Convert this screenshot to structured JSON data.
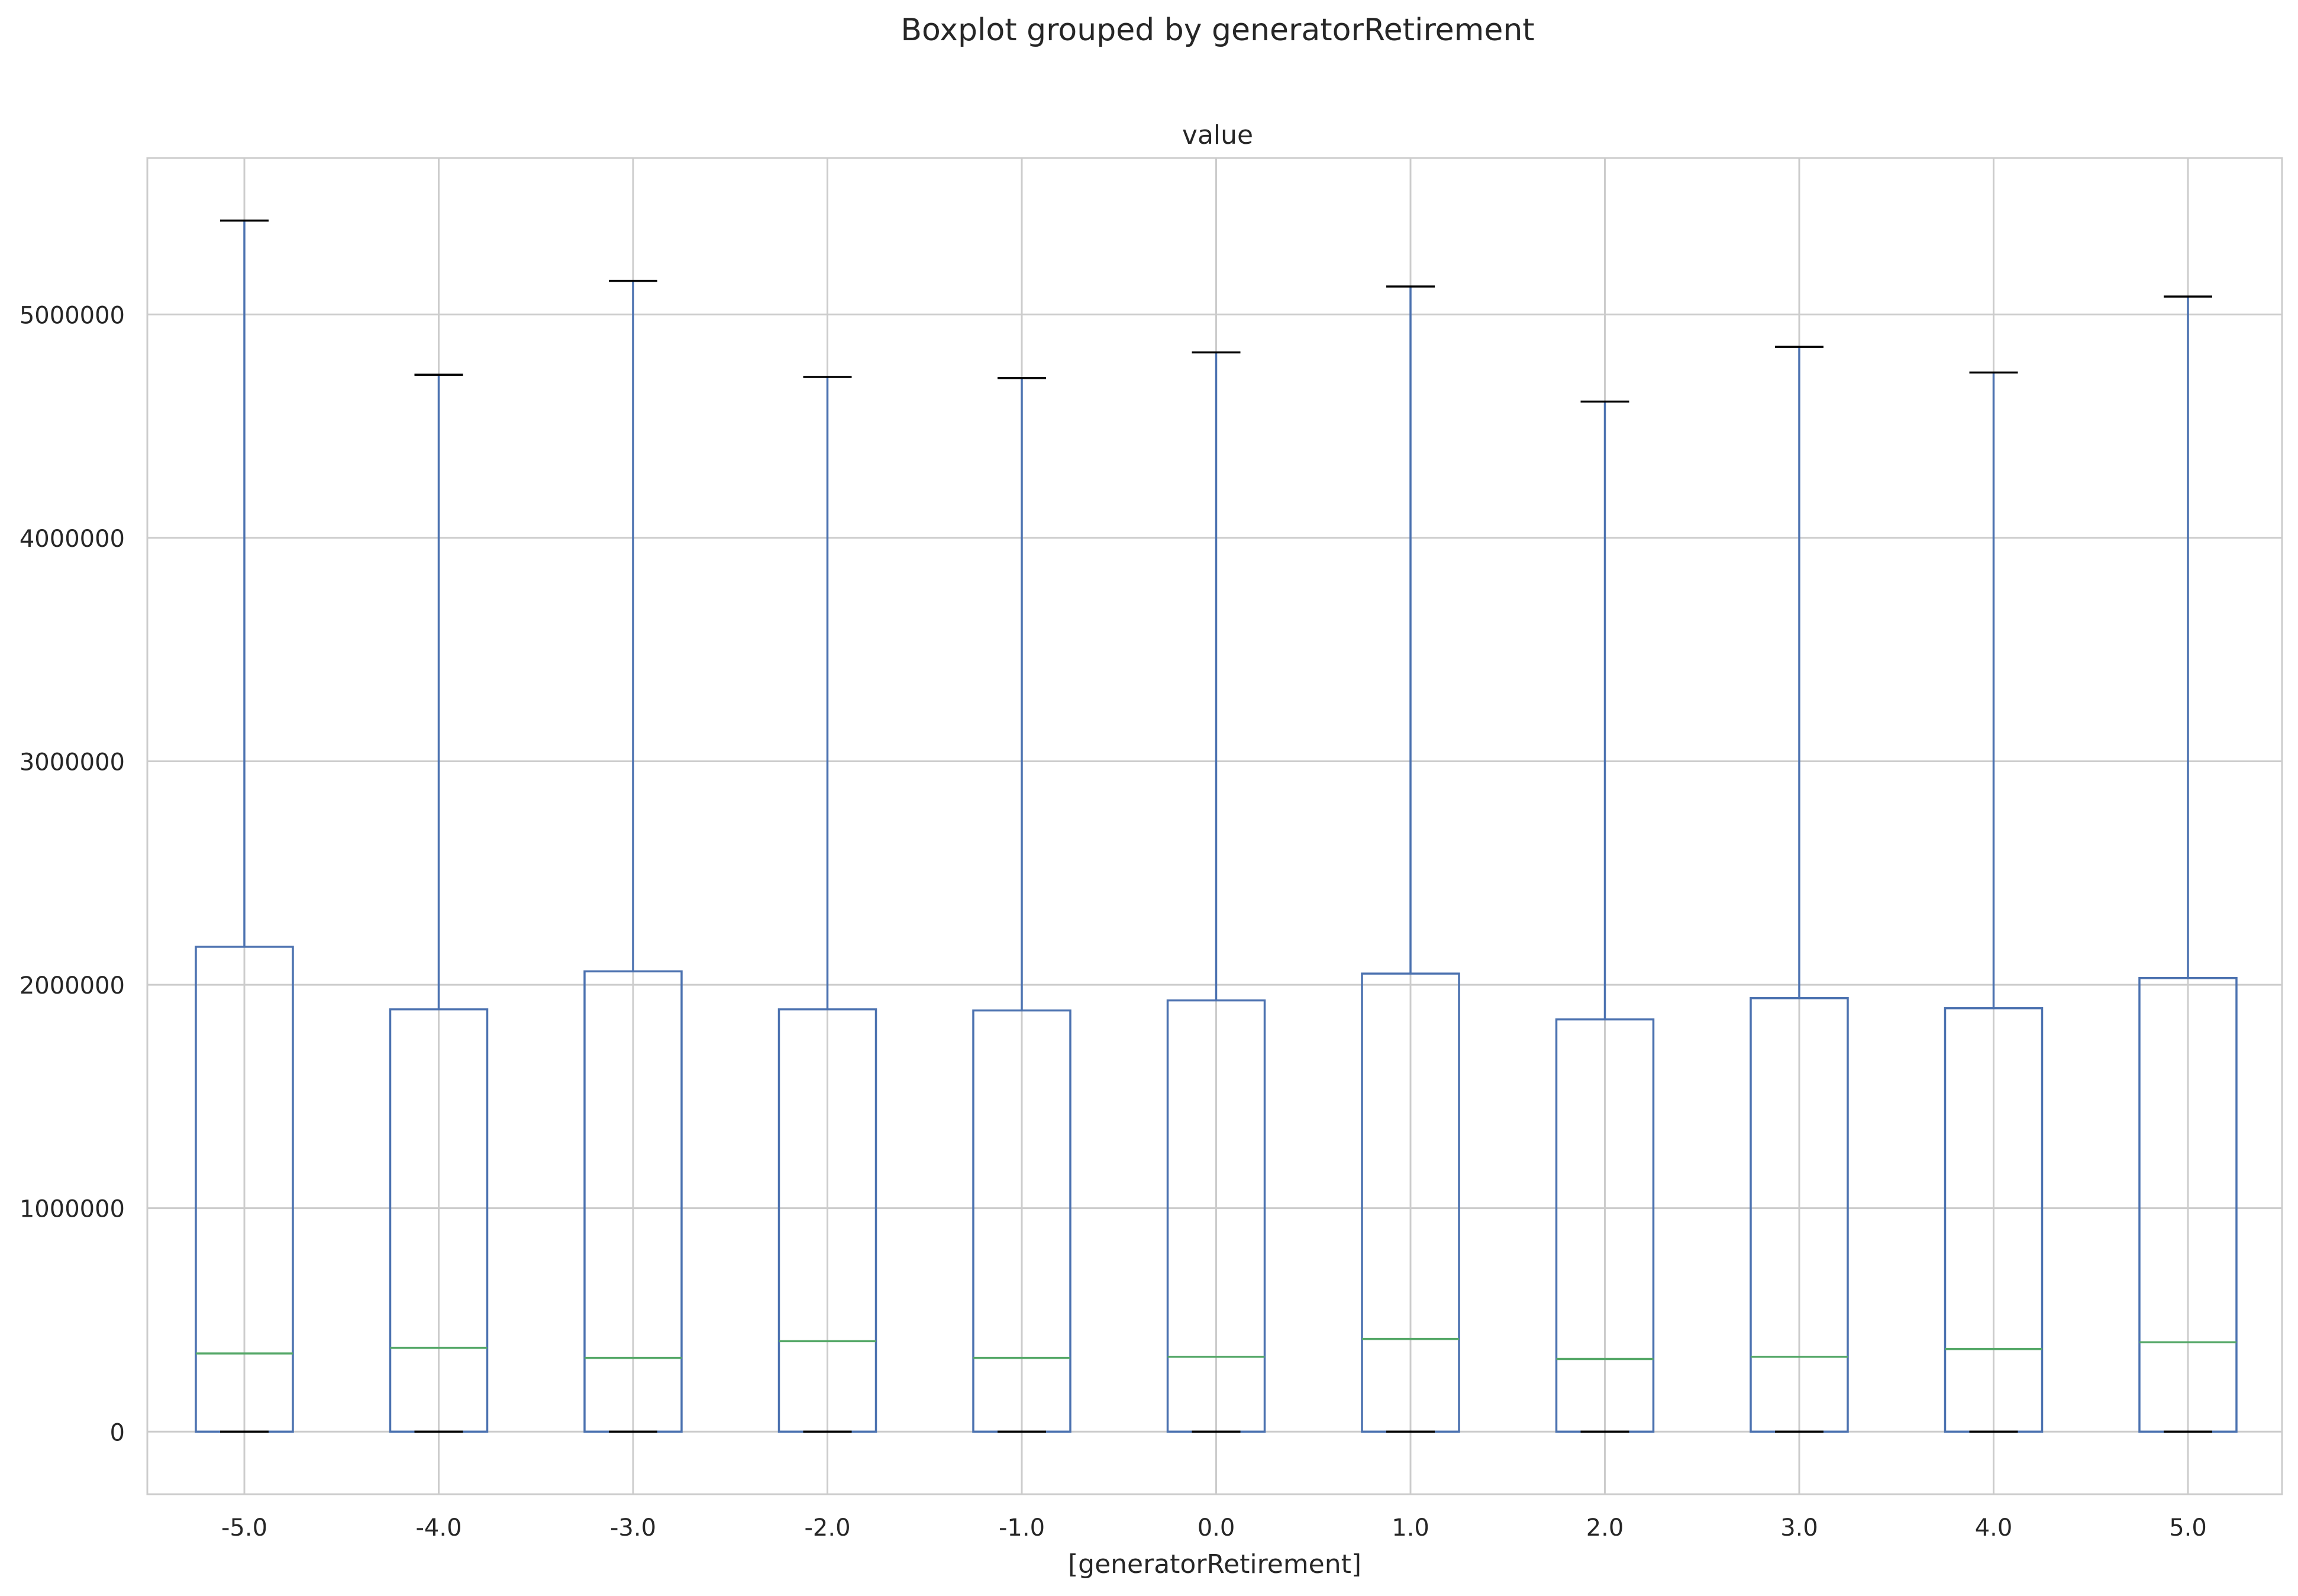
{
  "chart_data": {
    "type": "box",
    "title": "Boxplot grouped by generatorRetirement",
    "subtitle": "value",
    "xlabel": "[generatorRetirement]",
    "ylabel": "",
    "categories": [
      "-5.0",
      "-4.0",
      "-3.0",
      "-2.0",
      "-1.0",
      "0.0",
      "1.0",
      "2.0",
      "3.0",
      "4.0",
      "5.0"
    ],
    "boxes": [
      {
        "category": "-5.0",
        "whisker_low": 0,
        "q1": 0,
        "median": 350000,
        "q3": 2170000,
        "whisker_high": 5420000
      },
      {
        "category": "-4.0",
        "whisker_low": 0,
        "q1": 0,
        "median": 375000,
        "q3": 1890000,
        "whisker_high": 4730000
      },
      {
        "category": "-3.0",
        "whisker_low": 0,
        "q1": 0,
        "median": 330000,
        "q3": 2060000,
        "whisker_high": 5150000
      },
      {
        "category": "-2.0",
        "whisker_low": 0,
        "q1": 0,
        "median": 405000,
        "q3": 1890000,
        "whisker_high": 4720000
      },
      {
        "category": "-1.0",
        "whisker_low": 0,
        "q1": 0,
        "median": 330000,
        "q3": 1885000,
        "whisker_high": 4715000
      },
      {
        "category": "0.0",
        "whisker_low": 0,
        "q1": 0,
        "median": 335000,
        "q3": 1930000,
        "whisker_high": 4830000
      },
      {
        "category": "1.0",
        "whisker_low": 0,
        "q1": 0,
        "median": 415000,
        "q3": 2050000,
        "whisker_high": 5125000
      },
      {
        "category": "2.0",
        "whisker_low": 0,
        "q1": 0,
        "median": 325000,
        "q3": 1845000,
        "whisker_high": 4610000
      },
      {
        "category": "3.0",
        "whisker_low": 0,
        "q1": 0,
        "median": 335000,
        "q3": 1940000,
        "whisker_high": 4855000
      },
      {
        "category": "4.0",
        "whisker_low": 0,
        "q1": 0,
        "median": 370000,
        "q3": 1895000,
        "whisker_high": 4740000
      },
      {
        "category": "5.0",
        "whisker_low": 0,
        "q1": 0,
        "median": 400000,
        "q3": 2030000,
        "whisker_high": 5080000
      }
    ],
    "yticks": [
      0,
      1000000,
      2000000,
      3000000,
      4000000,
      5000000
    ],
    "ytick_labels": [
      "0",
      "1000000",
      "2000000",
      "3000000",
      "4000000",
      "5000000"
    ],
    "ylim": [
      -280000,
      5700000
    ],
    "grid": true,
    "legend": "none",
    "colors": {
      "box": "#4c72b0",
      "median": "#55a868",
      "caps": "#000000",
      "grid": "#cccccc",
      "frame": "#cccccc",
      "text": "#262626"
    }
  }
}
